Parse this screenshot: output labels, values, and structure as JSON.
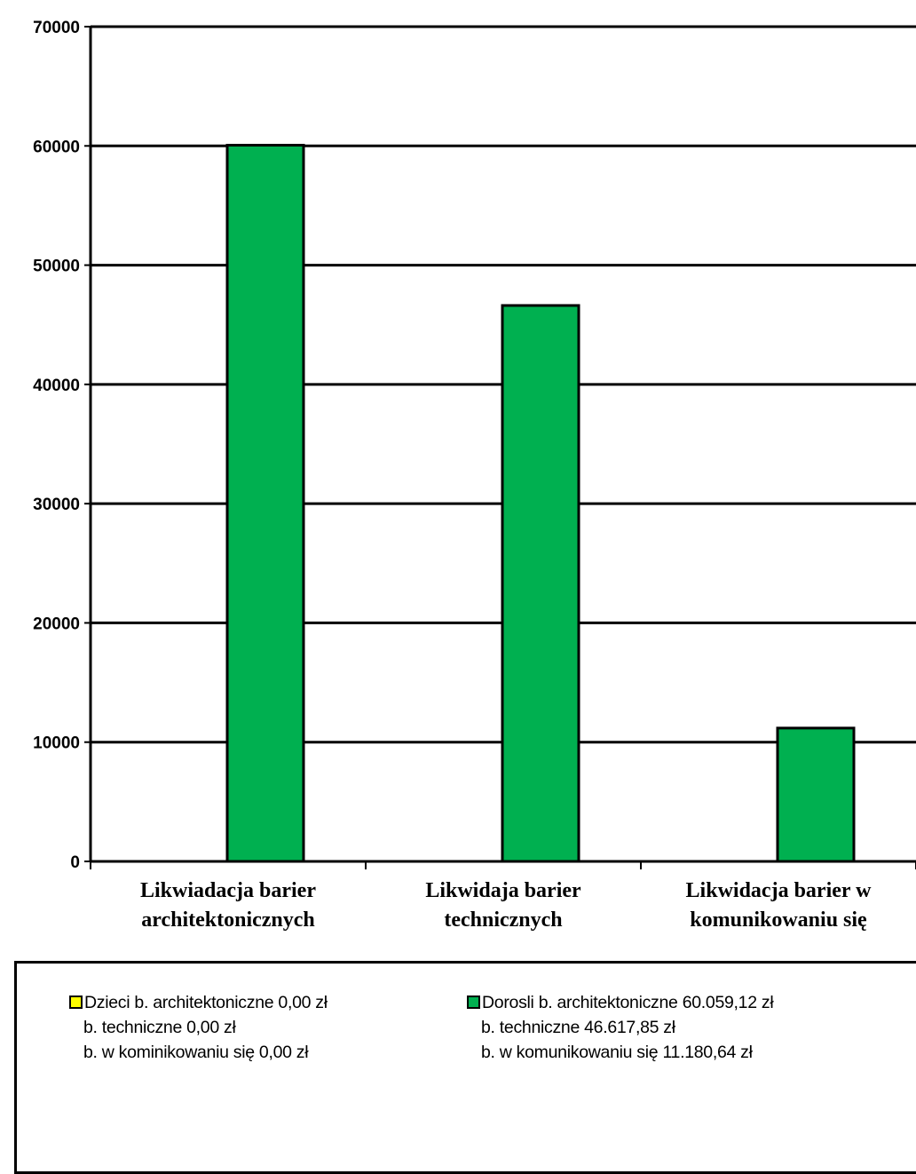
{
  "colors": {
    "dorosli": "#00B050",
    "dzieci": "#FFFF00"
  },
  "chart_data": {
    "type": "bar",
    "categories": [
      [
        "Likwiadacja barier",
        "architektonicznych"
      ],
      [
        "Likwidaja barier",
        "technicznych"
      ],
      [
        "Likwidacja barier w",
        "komunikowaniu się"
      ]
    ],
    "y_ticks": [
      "0",
      "10000",
      "20000",
      "30000",
      "40000",
      "50000",
      "60000",
      "70000"
    ],
    "ylim": [
      0,
      70000
    ],
    "grid": true,
    "legend_position": "bottom",
    "series": [
      {
        "name": "Dzieci",
        "color": "#FFFF00",
        "values": [
          0,
          0,
          0
        ]
      },
      {
        "name": "Dorosli",
        "color": "#00B050",
        "values": [
          60059.12,
          46617.85,
          11180.64
        ]
      }
    ]
  },
  "legend": {
    "dzieci": {
      "lines": [
        "Dzieci b. architektoniczne 0,00 zł",
        "b. techniczne 0,00 zł",
        "b. w kominikowaniu się 0,00 zł"
      ]
    },
    "dorosli": {
      "lines": [
        "Dorosli b. architektoniczne 60.059,12 zł",
        "b. techniczne 46.617,85 zł",
        "b. w komunikowaniu się 11.180,64 zł"
      ]
    }
  }
}
